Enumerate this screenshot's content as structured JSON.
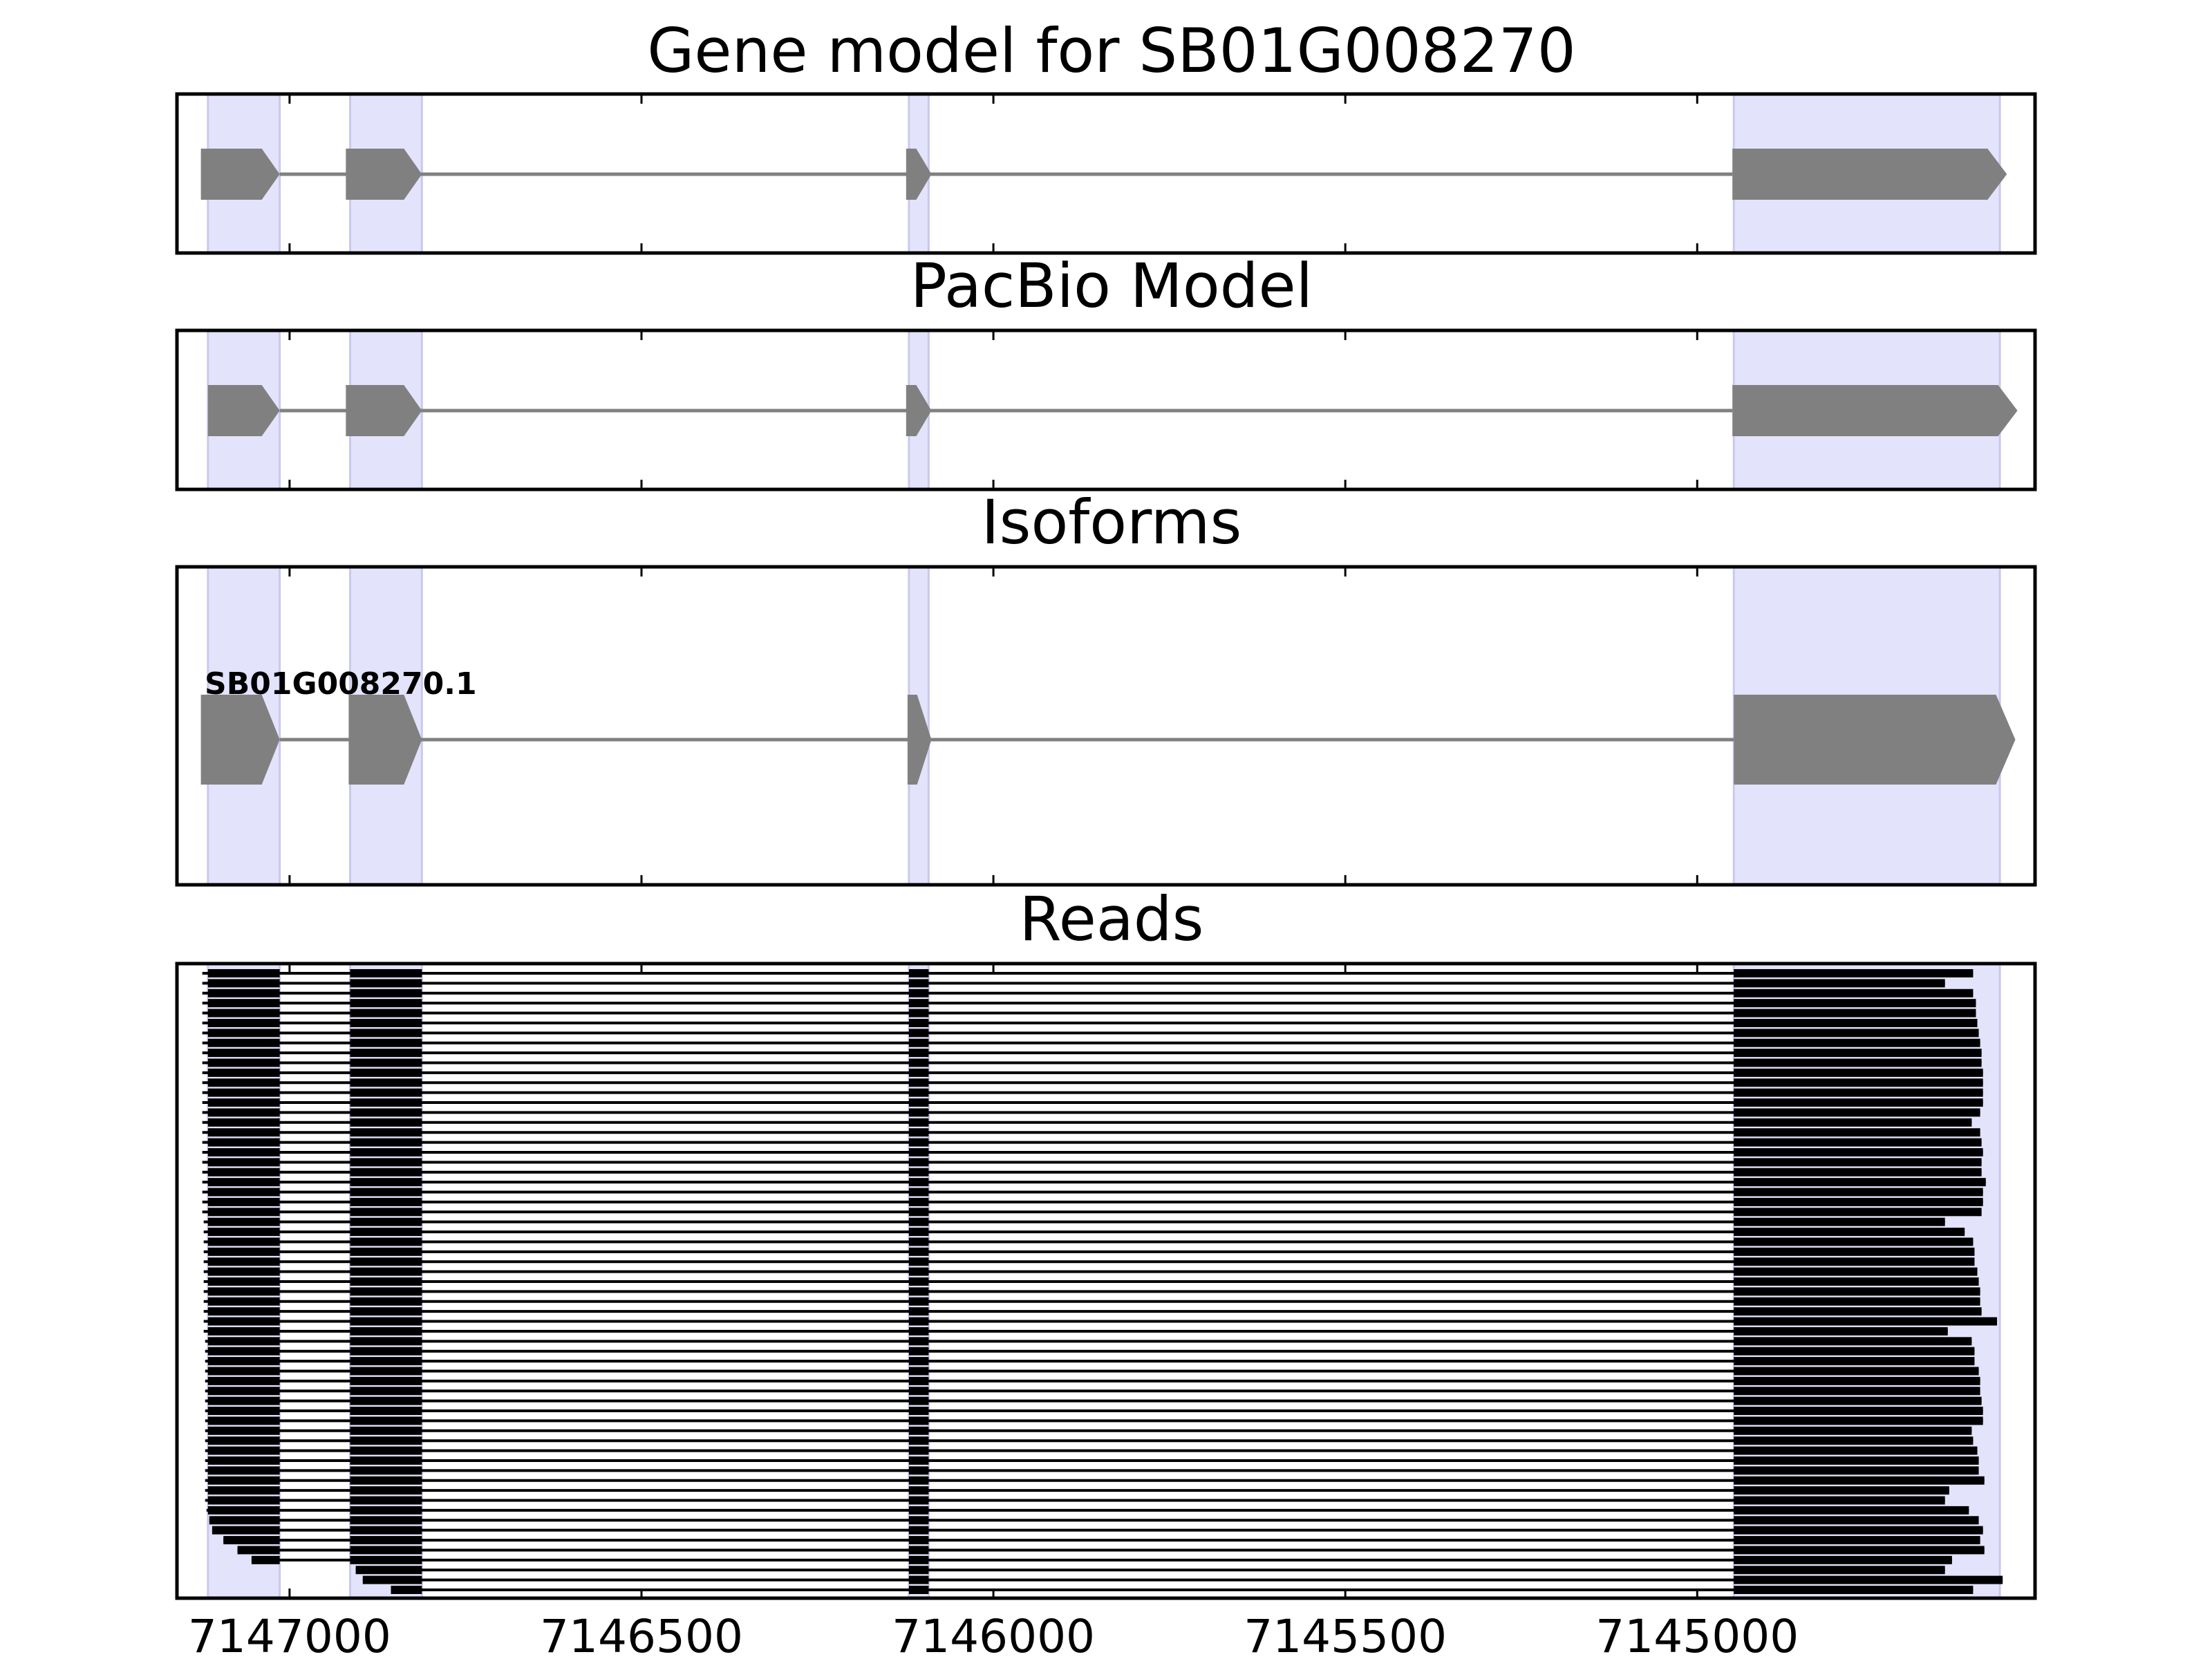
{
  "panels": {
    "gene_model": {
      "title": "Gene model for SB01G008270"
    },
    "pacbio": {
      "title": "PacBio Model"
    },
    "isoforms": {
      "title": "Isoforms",
      "isoform_label": "SB01G008270.1"
    },
    "reads": {
      "title": "Reads"
    }
  },
  "x_axis": {
    "reversed": true,
    "tick_labels": [
      "7147000",
      "7146500",
      "7146000",
      "7145500",
      "7145000"
    ],
    "tick_values": [
      7147000,
      7146500,
      7146000,
      7145500,
      7145000
    ]
  },
  "colors": {
    "exon_highlight": "#e3e3fb",
    "gene_feature": "#808080",
    "read": "#000000",
    "frame": "#000000"
  },
  "chart_data": {
    "type": "gene-structure",
    "xlim": [
      7147160,
      7144520
    ],
    "strand": "-",
    "exon_regions": [
      [
        7147116,
        7147014
      ],
      [
        7146914,
        7146812
      ],
      [
        7146120,
        7146092
      ],
      [
        7144948,
        7144570
      ]
    ],
    "tracks": {
      "gene_model": [
        [
          7147126,
          7147014
        ],
        [
          7146920,
          7146812
        ],
        [
          7146124,
          7146088
        ],
        [
          7144950,
          7144560
        ]
      ],
      "pacbio": [
        [
          7147116,
          7147014
        ],
        [
          7146920,
          7146812
        ],
        [
          7146124,
          7146088
        ],
        [
          7144950,
          7144545
        ]
      ],
      "isoforms": [
        [
          7147126,
          7147014
        ],
        [
          7146916,
          7146812
        ],
        [
          7146122,
          7146088
        ],
        [
          7144948,
          7144548
        ]
      ]
    },
    "reads": {
      "count": 63,
      "start_positions": [
        7147124,
        7147124,
        7147124,
        7147124,
        7147124,
        7147124,
        7147124,
        7147124,
        7147124,
        7147124,
        7147124,
        7147124,
        7147124,
        7147124,
        7147124,
        7147124,
        7147124,
        7147124,
        7147124,
        7147124,
        7147124,
        7147124,
        7147124,
        7147124,
        7147124,
        7147122,
        7147122,
        7147122,
        7147122,
        7147122,
        7147122,
        7147122,
        7147122,
        7147122,
        7147122,
        7147122,
        7147122,
        7147120,
        7147120,
        7147120,
        7147120,
        7147120,
        7147120,
        7147120,
        7147120,
        7147120,
        7147120,
        7147120,
        7147120,
        7147120,
        7147120,
        7147120,
        7147120,
        7147120,
        7147118,
        7147114,
        7147110,
        7147094,
        7147074,
        7147054,
        7146906,
        7146896,
        7146856
      ],
      "end_positions": [
        7144608,
        7144648,
        7144608,
        7144604,
        7144604,
        7144602,
        7144600,
        7144598,
        7144596,
        7144596,
        7144594,
        7144594,
        7144594,
        7144594,
        7144598,
        7144610,
        7144598,
        7144596,
        7144594,
        7144596,
        7144596,
        7144590,
        7144594,
        7144594,
        7144596,
        7144648,
        7144620,
        7144608,
        7144606,
        7144606,
        7144602,
        7144600,
        7144598,
        7144598,
        7144596,
        7144574,
        7144644,
        7144610,
        7144606,
        7144606,
        7144600,
        7144598,
        7144598,
        7144596,
        7144594,
        7144594,
        7144610,
        7144608,
        7144602,
        7144600,
        7144600,
        7144592,
        7144642,
        7144648,
        7144614,
        7144600,
        7144594,
        7144598,
        7144592,
        7144638,
        7144648,
        7144566,
        7144608
      ]
    }
  }
}
